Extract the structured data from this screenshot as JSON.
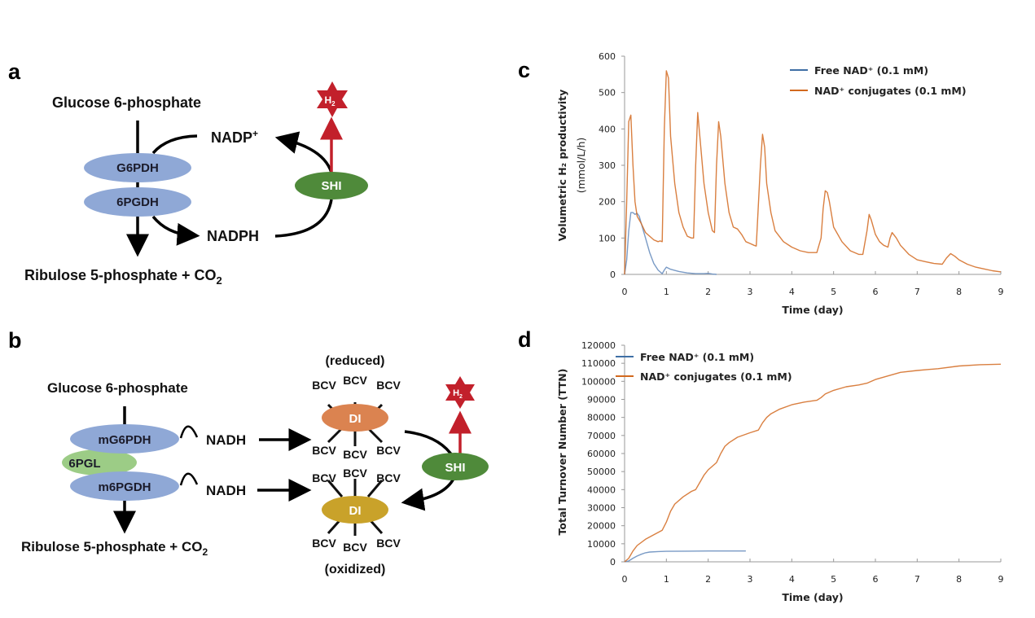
{
  "panels": {
    "a": {
      "letter": "a",
      "substrate": "Glucose 6-phosphate",
      "product_main": "Ribulose 5-phosphate + CO",
      "product_sub": "2",
      "enzyme1": "G6PDH",
      "enzyme2": "6PGDH",
      "cofactor_oxidized": "NADP",
      "cofactor_oxidized_sup": "+",
      "cofactor_reduced": "NADPH",
      "hydrogenase": "SHI",
      "h2_main": "H",
      "h2_sub": "2"
    },
    "b": {
      "letter": "b",
      "substrate": "Glucose 6-phosphate",
      "product_main": "Ribulose 5-phosphate + CO",
      "product_sub": "2",
      "enzyme1": "mG6PDH",
      "enzyme_mid": "6PGL",
      "enzyme2": "m6PGDH",
      "cofactor1": "NADH",
      "cofactor2": "NADH",
      "mediator_enzyme": "DI",
      "mediator": "BCV",
      "state_reduced": "(reduced)",
      "state_oxidized": "(oxidized)",
      "hydrogenase": "SHI",
      "h2_main": "H",
      "h2_sub": "2"
    },
    "c": {
      "letter": "c"
    },
    "d": {
      "letter": "d"
    }
  },
  "colors": {
    "enzyme_blue": "#8fa8d6",
    "pgl_green": "#9ccc86",
    "shi_green": "#4f8a3a",
    "di_reduced": "#db8350",
    "di_oxidized": "#c9a22a",
    "h2_red": "#c2202b",
    "series_free": "#3f6fa5",
    "series_conj": "#d2691e"
  },
  "chart_data": [
    {
      "id": "c",
      "type": "line",
      "title": "",
      "xlabel": "Time (day)",
      "ylabel_line1": "Volumetric H₂ productivity",
      "ylabel_line2": "(mmol/L/h)",
      "xlim": [
        0,
        9
      ],
      "ylim": [
        0,
        600
      ],
      "xticks": [
        0,
        1,
        2,
        3,
        4,
        5,
        6,
        7,
        8,
        9
      ],
      "yticks": [
        0,
        100,
        200,
        300,
        400,
        500,
        600
      ],
      "grid": false,
      "legend_position": "top-right",
      "series": [
        {
          "name": "Free NAD⁺ (0.1 mM)",
          "color": "#3f6fa5",
          "x": [
            0,
            0.05,
            0.1,
            0.15,
            0.2,
            0.25,
            0.3,
            0.35,
            0.4,
            0.5,
            0.6,
            0.7,
            0.8,
            0.9,
            0.95,
            1.0,
            1.1,
            1.3,
            1.5,
            1.7,
            1.9,
            2.0,
            2.1,
            2.2
          ],
          "y": [
            0,
            40,
            120,
            170,
            170,
            165,
            168,
            160,
            140,
            100,
            60,
            30,
            12,
            2,
            12,
            20,
            14,
            8,
            4,
            2,
            2,
            3,
            1,
            0
          ]
        },
        {
          "name": "NAD⁺ conjugates (0.1 mM)",
          "color": "#d2691e",
          "x": [
            0,
            0.05,
            0.1,
            0.15,
            0.2,
            0.25,
            0.3,
            0.4,
            0.5,
            0.6,
            0.7,
            0.8,
            0.85,
            0.9,
            0.95,
            1.0,
            1.05,
            1.1,
            1.2,
            1.3,
            1.4,
            1.5,
            1.6,
            1.65,
            1.7,
            1.75,
            1.8,
            1.9,
            2.0,
            2.1,
            2.15,
            2.2,
            2.25,
            2.3,
            2.4,
            2.5,
            2.6,
            2.7,
            2.8,
            2.9,
            3.0,
            3.1,
            3.15,
            3.25,
            3.3,
            3.35,
            3.4,
            3.5,
            3.6,
            3.8,
            4.0,
            4.2,
            4.4,
            4.6,
            4.7,
            4.75,
            4.8,
            4.85,
            4.9,
            5.0,
            5.2,
            5.4,
            5.6,
            5.7,
            5.8,
            5.85,
            5.9,
            6.0,
            6.1,
            6.2,
            6.3,
            6.35,
            6.4,
            6.5,
            6.6,
            6.8,
            7.0,
            7.2,
            7.4,
            7.6,
            7.7,
            7.8,
            7.9,
            8.0,
            8.2,
            8.4,
            8.6,
            8.8,
            9.0
          ],
          "y": [
            0,
            200,
            420,
            438,
            300,
            200,
            160,
            140,
            115,
            105,
            95,
            90,
            92,
            90,
            400,
            560,
            540,
            380,
            250,
            170,
            130,
            105,
            100,
            100,
            300,
            445,
            380,
            250,
            170,
            120,
            115,
            300,
            420,
            380,
            250,
            170,
            130,
            125,
            110,
            90,
            85,
            80,
            78,
            300,
            385,
            350,
            250,
            170,
            120,
            90,
            75,
            65,
            60,
            60,
            100,
            180,
            230,
            225,
            200,
            130,
            90,
            65,
            55,
            55,
            120,
            165,
            150,
            110,
            90,
            80,
            75,
            100,
            115,
            100,
            80,
            55,
            40,
            35,
            30,
            28,
            45,
            57,
            50,
            40,
            28,
            20,
            15,
            10,
            7
          ]
        }
      ]
    },
    {
      "id": "d",
      "type": "line",
      "title": "",
      "xlabel": "Time (day)",
      "ylabel": "Total Turnover Number (TTN)",
      "xlim": [
        0,
        9
      ],
      "ylim": [
        0,
        120000
      ],
      "xticks": [
        0,
        1,
        2,
        3,
        4,
        5,
        6,
        7,
        8,
        9
      ],
      "yticks": [
        0,
        10000,
        20000,
        30000,
        40000,
        50000,
        60000,
        70000,
        80000,
        90000,
        100000,
        110000,
        120000
      ],
      "grid": false,
      "legend_position": "top-left",
      "series": [
        {
          "name": "Free NAD⁺ (0.1 mM)",
          "color": "#3f6fa5",
          "x": [
            0,
            0.1,
            0.2,
            0.3,
            0.4,
            0.5,
            0.6,
            0.8,
            1.0,
            1.5,
            2.0,
            2.5,
            2.9
          ],
          "y": [
            0,
            500,
            2000,
            3200,
            4200,
            5000,
            5400,
            5700,
            5800,
            5900,
            6000,
            6000,
            6000
          ]
        },
        {
          "name": "NAD⁺ conjugates (0.1 mM)",
          "color": "#d2691e",
          "x": [
            0,
            0.1,
            0.2,
            0.3,
            0.5,
            0.7,
            0.9,
            1.0,
            1.1,
            1.2,
            1.4,
            1.6,
            1.7,
            1.8,
            1.9,
            2.0,
            2.2,
            2.3,
            2.4,
            2.5,
            2.7,
            3.0,
            3.2,
            3.3,
            3.4,
            3.5,
            3.7,
            4.0,
            4.3,
            4.6,
            4.7,
            4.8,
            4.9,
            5.0,
            5.3,
            5.6,
            5.8,
            6.0,
            6.3,
            6.6,
            7.0,
            7.5,
            8.0,
            8.5,
            9.0
          ],
          "y": [
            0,
            2000,
            6000,
            9000,
            12500,
            15000,
            17500,
            22000,
            28000,
            32000,
            36000,
            39000,
            40000,
            44000,
            48000,
            51000,
            55000,
            60000,
            64000,
            66000,
            69000,
            71500,
            73000,
            77000,
            80000,
            82000,
            84500,
            87000,
            88500,
            89500,
            91000,
            93000,
            94000,
            95000,
            97000,
            98000,
            99000,
            101000,
            103000,
            105000,
            106000,
            107000,
            108500,
            109200,
            109500
          ]
        }
      ]
    }
  ]
}
